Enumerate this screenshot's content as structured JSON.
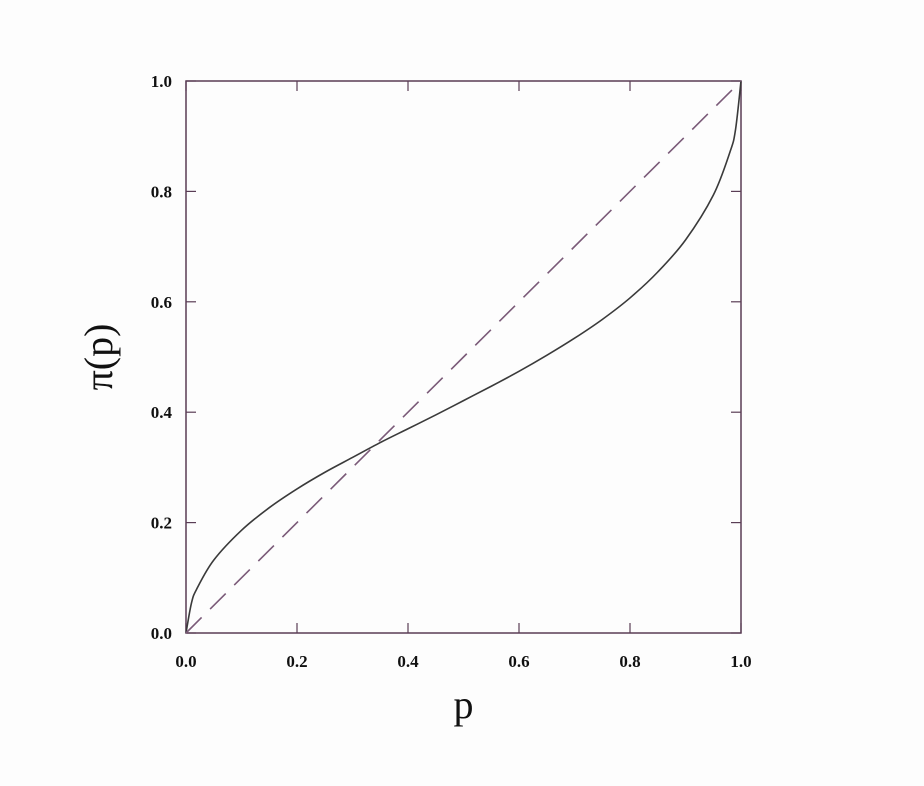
{
  "chart_data": {
    "type": "line",
    "title": "",
    "xlabel": "p",
    "ylabel": "π(p)",
    "xlim": [
      0,
      1
    ],
    "ylim": [
      0,
      1
    ],
    "grid": false,
    "xticks": [
      "0.0",
      "0.2",
      "0.4",
      "0.6",
      "0.8",
      "1.0"
    ],
    "yticks": [
      "0.0",
      "0.2",
      "0.4",
      "0.6",
      "0.8",
      "1.0"
    ],
    "series": [
      {
        "style": "solid",
        "color": "#3a3a3a",
        "x": [
          0,
          0.01,
          0.02,
          0.05,
          0.1,
          0.15,
          0.2,
          0.25,
          0.3,
          0.35,
          0.4,
          0.45,
          0.5,
          0.55,
          0.6,
          0.65,
          0.7,
          0.75,
          0.8,
          0.85,
          0.9,
          0.95,
          0.98,
          0.99,
          1.0
        ],
        "y": [
          0,
          0.055,
          0.081,
          0.132,
          0.186,
          0.227,
          0.261,
          0.291,
          0.318,
          0.345,
          0.37,
          0.395,
          0.421,
          0.447,
          0.474,
          0.503,
          0.534,
          0.568,
          0.607,
          0.654,
          0.712,
          0.793,
          0.871,
          0.911,
          1.0
        ]
      },
      {
        "style": "dashed",
        "color": "#7a5a78",
        "x": [
          0,
          1
        ],
        "y": [
          0,
          1
        ]
      }
    ],
    "frame_color": "#5a3d55"
  }
}
